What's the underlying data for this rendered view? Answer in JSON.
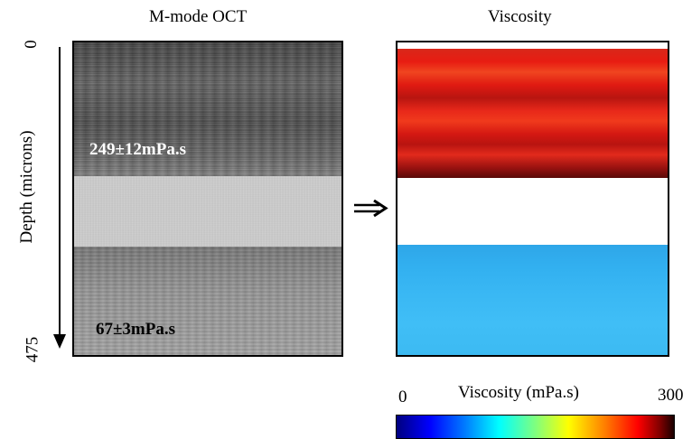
{
  "panels": {
    "oct_title": "M-mode OCT",
    "viscosity_title": "Viscosity"
  },
  "depth_axis": {
    "label": "Depth (microns)",
    "min_tick": "0",
    "max_tick": "475"
  },
  "oct": {
    "top_layer_value": "249±12mPa.s",
    "bottom_layer_value": "67±3mPa.s"
  },
  "colorbar": {
    "title": "Viscosity (mPa.s)",
    "min_label": "0",
    "max_label": "300",
    "colormap": "jet"
  },
  "colors": {
    "top_layer": "#e01a12",
    "bottom_layer": "#3ab8f4",
    "middle_layer": "#ffffff",
    "oct_middle": "#cfcfcf"
  }
}
